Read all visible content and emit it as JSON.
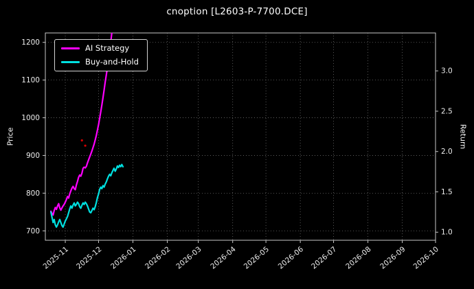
{
  "chart_data": {
    "type": "line",
    "title": "cnoption [L2603-P-7700.DCE]",
    "ylabel_left": "Price",
    "ylabel_right": "Return",
    "x_axis": {
      "note": "x values are days since 2025-10-14",
      "min": 0,
      "max": 352,
      "ticks": [
        {
          "label": "2025-11",
          "x": 18
        },
        {
          "label": "2025-12",
          "x": 48
        },
        {
          "label": "2026-01",
          "x": 79
        },
        {
          "label": "2026-02",
          "x": 110
        },
        {
          "label": "2026-03",
          "x": 138
        },
        {
          "label": "2026-04",
          "x": 169
        },
        {
          "label": "2026-05",
          "x": 199
        },
        {
          "label": "2026-06",
          "x": 230
        },
        {
          "label": "2026-07",
          "x": 260
        },
        {
          "label": "2026-08",
          "x": 291
        },
        {
          "label": "2026-09",
          "x": 322
        },
        {
          "label": "2026-10",
          "x": 352
        }
      ]
    },
    "y_axis_left": {
      "label": "Price",
      "min": 675,
      "max": 1225,
      "ticks": [
        700,
        800,
        900,
        1000,
        1100,
        1200
      ]
    },
    "y_axis_right": {
      "label": "Return",
      "min": 0.9,
      "max": 3.47,
      "ticks": [
        1.0,
        1.5,
        2.0,
        2.5,
        3.0
      ]
    },
    "grid": {
      "style": "dotted",
      "color": "#6e6e6e"
    },
    "spine_color": "#c8c8c8",
    "background": "#000000",
    "text_color": "#ffffff",
    "tick_label_color": "#eeeeee",
    "legend": {
      "position": "upper-left",
      "entries": [
        "AI Strategy",
        "Buy-and-Hold"
      ]
    },
    "series": [
      {
        "name": "AI Strategy",
        "color": "#ff00ff",
        "width": 2.2,
        "points": [
          [
            5,
            752
          ],
          [
            6,
            746
          ],
          [
            7,
            742
          ],
          [
            8,
            754
          ],
          [
            9,
            762
          ],
          [
            10,
            757
          ],
          [
            11,
            766
          ],
          [
            12,
            772
          ],
          [
            13,
            761
          ],
          [
            14,
            755
          ],
          [
            15,
            761
          ],
          [
            16,
            766
          ],
          [
            17,
            770
          ],
          [
            18,
            776
          ],
          [
            19,
            783
          ],
          [
            20,
            791
          ],
          [
            21,
            787
          ],
          [
            22,
            798
          ],
          [
            23,
            806
          ],
          [
            24,
            813
          ],
          [
            25,
            818
          ],
          [
            26,
            812
          ],
          [
            27,
            809
          ],
          [
            28,
            822
          ],
          [
            29,
            831
          ],
          [
            30,
            842
          ],
          [
            31,
            848
          ],
          [
            32,
            845
          ],
          [
            33,
            853
          ],
          [
            34,
            866
          ],
          [
            35,
            869
          ],
          [
            36,
            867
          ],
          [
            37,
            871
          ],
          [
            38,
            880
          ],
          [
            39,
            888
          ],
          [
            40,
            896
          ],
          [
            41,
            904
          ],
          [
            42,
            912
          ],
          [
            43,
            921
          ],
          [
            44,
            930
          ],
          [
            45,
            941
          ],
          [
            46,
            953
          ],
          [
            47,
            967
          ],
          [
            48,
            982
          ],
          [
            49,
            999
          ],
          [
            50,
            1016
          ],
          [
            51,
            1034
          ],
          [
            52,
            1053
          ],
          [
            53,
            1073
          ],
          [
            54,
            1094
          ],
          [
            55,
            1114
          ],
          [
            56,
            1134
          ],
          [
            57,
            1155
          ],
          [
            58,
            1177
          ],
          [
            59,
            1200
          ],
          [
            60,
            1226
          ],
          [
            61,
            1252
          ]
        ]
      },
      {
        "name": "Buy-and-Hold",
        "color": "#00e0e0",
        "width": 2.2,
        "points": [
          [
            5,
            750
          ],
          [
            6,
            736
          ],
          [
            7,
            722
          ],
          [
            8,
            730
          ],
          [
            9,
            716
          ],
          [
            10,
            710
          ],
          [
            11,
            716
          ],
          [
            12,
            724
          ],
          [
            13,
            730
          ],
          [
            14,
            722
          ],
          [
            15,
            714
          ],
          [
            16,
            710
          ],
          [
            17,
            718
          ],
          [
            18,
            726
          ],
          [
            19,
            732
          ],
          [
            20,
            738
          ],
          [
            21,
            748
          ],
          [
            22,
            758
          ],
          [
            23,
            766
          ],
          [
            24,
            760
          ],
          [
            25,
            768
          ],
          [
            26,
            774
          ],
          [
            27,
            766
          ],
          [
            28,
            770
          ],
          [
            29,
            776
          ],
          [
            30,
            772
          ],
          [
            31,
            764
          ],
          [
            32,
            760
          ],
          [
            33,
            768
          ],
          [
            34,
            774
          ],
          [
            35,
            770
          ],
          [
            36,
            776
          ],
          [
            37,
            772
          ],
          [
            38,
            766
          ],
          [
            39,
            758
          ],
          [
            40,
            750
          ],
          [
            41,
            748
          ],
          [
            42,
            754
          ],
          [
            43,
            760
          ],
          [
            44,
            756
          ],
          [
            45,
            764
          ],
          [
            46,
            775
          ],
          [
            47,
            788
          ],
          [
            48,
            798
          ],
          [
            49,
            810
          ],
          [
            50,
            816
          ],
          [
            51,
            812
          ],
          [
            52,
            820
          ],
          [
            53,
            816
          ],
          [
            54,
            824
          ],
          [
            55,
            830
          ],
          [
            56,
            838
          ],
          [
            57,
            845
          ],
          [
            58,
            850
          ],
          [
            59,
            846
          ],
          [
            60,
            854
          ],
          [
            61,
            860
          ],
          [
            62,
            866
          ],
          [
            63,
            858
          ],
          [
            64,
            864
          ],
          [
            65,
            872
          ],
          [
            66,
            868
          ],
          [
            67,
            874
          ],
          [
            68,
            870
          ],
          [
            69,
            876
          ],
          [
            70,
            870
          ]
        ]
      }
    ],
    "markers": [
      {
        "x": 33,
        "y": 940,
        "color": "#d40000",
        "r": 1.6
      },
      {
        "x": 36,
        "y": 926,
        "color": "#d40000",
        "r": 1.6
      }
    ]
  }
}
